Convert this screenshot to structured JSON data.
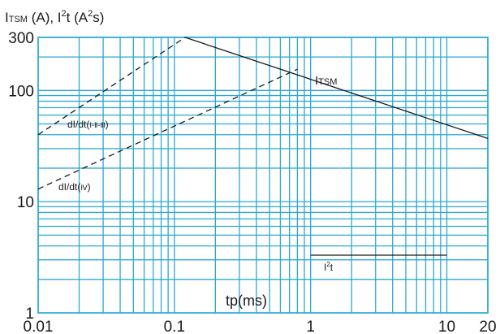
{
  "chart_data": {
    "type": "line",
    "title": "",
    "ylabel_parts": {
      "a": "I",
      "b": "TSM",
      "c": " (A), I",
      "d": "2",
      "e": "t (A",
      "f": "2",
      "g": "s)"
    },
    "xlabel": "tp(ms)",
    "x_scale": "log",
    "y_scale": "log",
    "xlim": [
      0.01,
      20
    ],
    "ylim": [
      1,
      300
    ],
    "x_ticks": [
      0.01,
      0.1,
      1,
      10,
      20
    ],
    "x_tick_labels": [
      "0.01",
      "0.1",
      "1",
      "10",
      "20"
    ],
    "y_ticks": [
      1,
      10,
      100,
      300
    ],
    "y_tick_labels": [
      "1",
      "10",
      "100",
      "300"
    ],
    "grid": true,
    "colors": {
      "grid": "#2aa9d2",
      "line": "#1a1a1a",
      "bg": "#ffffff"
    },
    "series": [
      {
        "name_parts": {
          "a": "I",
          "b": "TSM"
        },
        "style": "solid",
        "x": [
          0.12,
          20
        ],
        "y": [
          300,
          37
        ]
      },
      {
        "name_parts": {
          "a": "dI/dt(",
          "b": "Ⅰ-Ⅱ-Ⅲ",
          "c": ")"
        },
        "style": "dashed",
        "x": [
          0.01,
          0.12
        ],
        "y": [
          40,
          300
        ]
      },
      {
        "name_parts": {
          "a": "dI/dt(",
          "b": "Ⅳ",
          "c": ")"
        },
        "style": "dashed",
        "x": [
          0.01,
          0.8
        ],
        "y": [
          13,
          155
        ]
      },
      {
        "name_parts": {
          "a": "I",
          "b": "2",
          "c": "t"
        },
        "style": "solid",
        "x": [
          1,
          10
        ],
        "y": [
          3.3,
          3.3
        ]
      }
    ]
  }
}
